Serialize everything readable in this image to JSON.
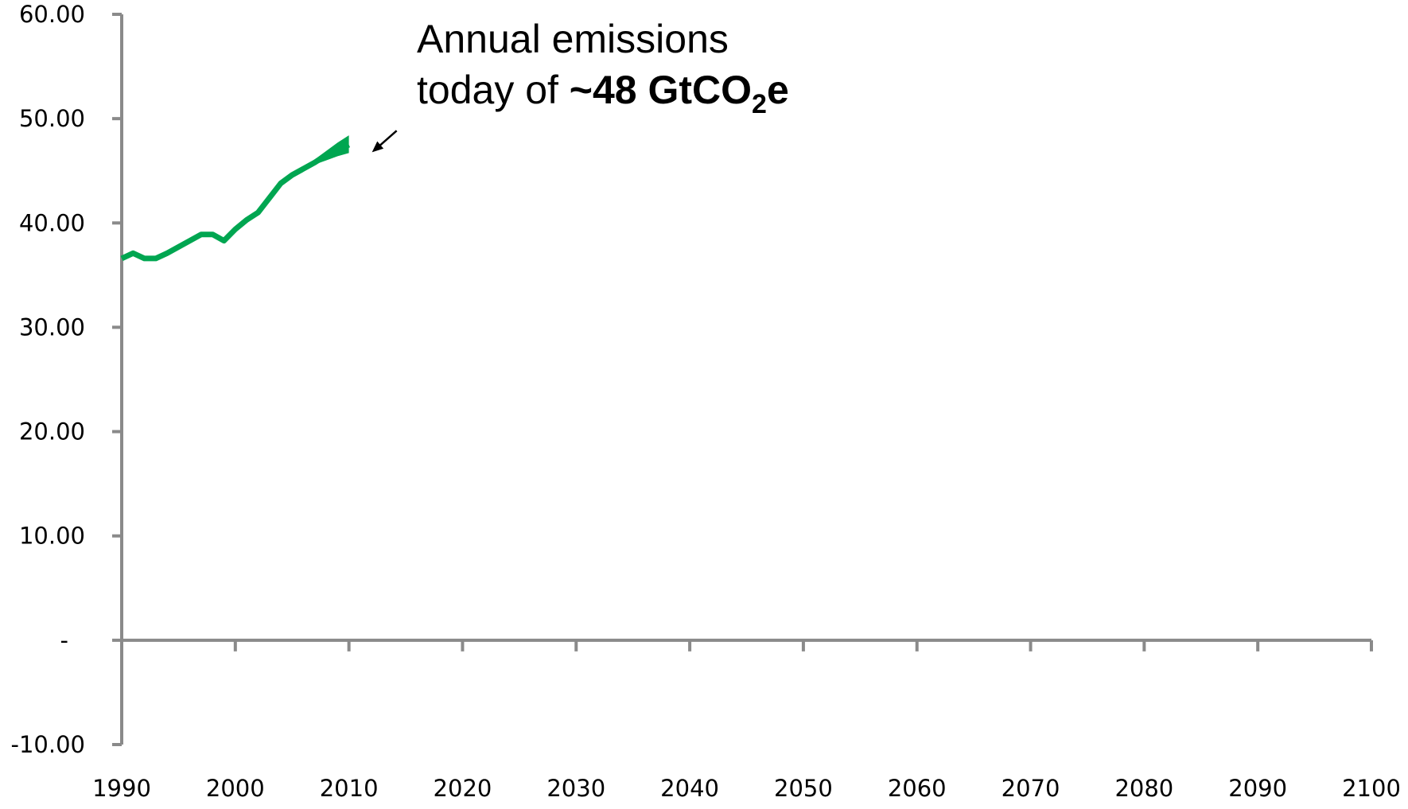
{
  "chart_data": {
    "type": "line",
    "title": "",
    "xlabel": "",
    "ylabel": "",
    "xlim": [
      1990,
      2100
    ],
    "ylim": [
      -10,
      60
    ],
    "x_ticks": [
      "1990",
      "2000",
      "2010",
      "2020",
      "2030",
      "2040",
      "2050",
      "2060",
      "2070",
      "2080",
      "2090",
      "2100"
    ],
    "y_ticks": [
      {
        "value": 60,
        "label": "60.00"
      },
      {
        "value": 50,
        "label": "50.00"
      },
      {
        "value": 40,
        "label": "40.00"
      },
      {
        "value": 30,
        "label": "30.00"
      },
      {
        "value": 20,
        "label": "20.00"
      },
      {
        "value": 10,
        "label": "10.00"
      },
      {
        "value": 0,
        "label": "-"
      },
      {
        "value": -10,
        "label": "-10.00"
      }
    ],
    "grid": false,
    "legend": "none",
    "series": [
      {
        "color": "#00A651",
        "x": [
          1990,
          1991,
          1992,
          1993,
          1994,
          1995,
          1996,
          1997,
          1998,
          1999,
          2000,
          2001,
          2002,
          2003,
          2004,
          2005,
          2006,
          2007,
          2008,
          2009,
          2010
        ],
        "y": [
          36.6,
          37.1,
          36.6,
          36.6,
          37.1,
          37.7,
          38.3,
          38.9,
          38.9,
          38.3,
          39.4,
          40.3,
          41.0,
          42.4,
          43.8,
          44.6,
          45.2,
          45.8,
          46.5,
          47.0,
          47.5
        ],
        "uncertainty_band": {
          "x": [
            2007,
            2008,
            2009,
            2010
          ],
          "low": [
            45.6,
            46.0,
            46.4,
            46.7
          ],
          "high": [
            46.1,
            46.9,
            47.7,
            48.4
          ]
        }
      }
    ],
    "annotations": [
      {
        "line1": "Annual emissions",
        "line2_prefix": "today of ",
        "line2_bold": "~48 GtCO",
        "line2_subscript": "2",
        "line2_suffix": "e",
        "arrow_points_to": {
          "x": 2010,
          "y": 48
        }
      }
    ]
  }
}
